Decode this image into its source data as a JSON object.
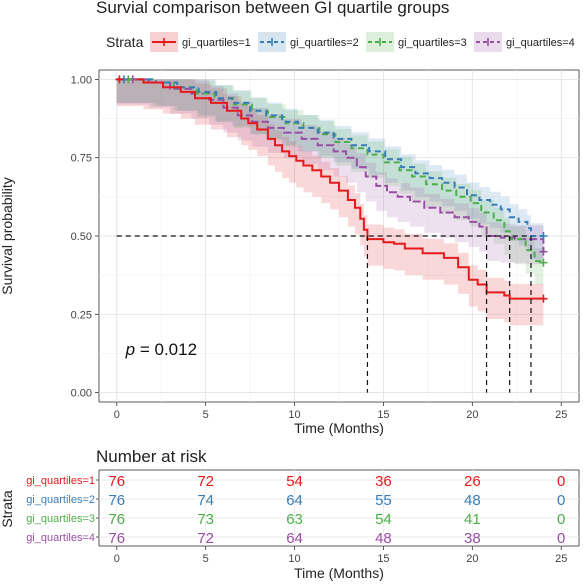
{
  "chart_data": {
    "type": "line",
    "title": "Survial comparison between GI quartile groups",
    "legend": {
      "title": "Strata",
      "position": "top"
    },
    "xlabel": "Time (Months)",
    "ylabel": "Survival probability",
    "xlim": [
      -1,
      26
    ],
    "ylim": [
      -0.03,
      1.03
    ],
    "xticks": [
      0,
      5,
      10,
      15,
      20,
      25
    ],
    "yticks": [
      0.0,
      0.25,
      0.5,
      0.75,
      1.0
    ],
    "ytick_labels": [
      "0.00",
      "0.25",
      "0.50",
      "0.75",
      "1.00"
    ],
    "grid": true,
    "annotation": {
      "p_label": "p",
      "p_rest": " = 0.012",
      "x": 0.5,
      "y": 0.12
    },
    "median_reference": {
      "y": 0.5,
      "medians": [
        14.1,
        20.8,
        22.1,
        23.3
      ]
    },
    "series": [
      {
        "name": "gi_quartiles=1",
        "color": "#e41a1c",
        "dash": "solid",
        "band_width": 0.085,
        "steps": [
          [
            0,
            1.0
          ],
          [
            1.5,
            0.99
          ],
          [
            2.6,
            0.975
          ],
          [
            3.6,
            0.96
          ],
          [
            4.4,
            0.94
          ],
          [
            5.3,
            0.925
          ],
          [
            6.2,
            0.9
          ],
          [
            7.0,
            0.875
          ],
          [
            7.4,
            0.86
          ],
          [
            7.9,
            0.84
          ],
          [
            8.5,
            0.81
          ],
          [
            8.9,
            0.79
          ],
          [
            9.3,
            0.77
          ],
          [
            9.7,
            0.755
          ],
          [
            10.1,
            0.74
          ],
          [
            10.5,
            0.725
          ],
          [
            11.0,
            0.71
          ],
          [
            11.5,
            0.69
          ],
          [
            12.0,
            0.67
          ],
          [
            12.5,
            0.645
          ],
          [
            13.0,
            0.615
          ],
          [
            13.4,
            0.59
          ],
          [
            13.7,
            0.555
          ],
          [
            13.9,
            0.52
          ],
          [
            14.1,
            0.49
          ],
          [
            15.0,
            0.48
          ],
          [
            15.6,
            0.475
          ],
          [
            16.2,
            0.46
          ],
          [
            17.2,
            0.445
          ],
          [
            18.4,
            0.43
          ],
          [
            19.2,
            0.4
          ],
          [
            19.8,
            0.36
          ],
          [
            20.3,
            0.345
          ],
          [
            20.8,
            0.32
          ],
          [
            21.8,
            0.31
          ],
          [
            22.1,
            0.3
          ],
          [
            24.0,
            0.3
          ]
        ],
        "censor_times": [
          24.0
        ],
        "risk_counts": [
          "76",
          "72",
          "54",
          "36",
          "26",
          "0"
        ]
      },
      {
        "name": "gi_quartiles=2",
        "color": "#377eb8",
        "dash": "6,4",
        "band_width": 0.075,
        "steps": [
          [
            0,
            1.0
          ],
          [
            2.2,
            0.99
          ],
          [
            3.4,
            0.975
          ],
          [
            4.6,
            0.96
          ],
          [
            5.6,
            0.94
          ],
          [
            6.5,
            0.925
          ],
          [
            7.5,
            0.9
          ],
          [
            8.4,
            0.885
          ],
          [
            9.3,
            0.865
          ],
          [
            10.2,
            0.845
          ],
          [
            11.3,
            0.83
          ],
          [
            12.2,
            0.81
          ],
          [
            13.2,
            0.79
          ],
          [
            14.2,
            0.77
          ],
          [
            15.1,
            0.745
          ],
          [
            16.0,
            0.72
          ],
          [
            16.8,
            0.7
          ],
          [
            17.6,
            0.685
          ],
          [
            18.3,
            0.67
          ],
          [
            19.0,
            0.655
          ],
          [
            19.7,
            0.63
          ],
          [
            20.4,
            0.615
          ],
          [
            21.0,
            0.6
          ],
          [
            21.6,
            0.585
          ],
          [
            22.1,
            0.56
          ],
          [
            22.6,
            0.545
          ],
          [
            23.1,
            0.525
          ],
          [
            23.3,
            0.5
          ],
          [
            24.0,
            0.5
          ]
        ],
        "censor_times": [
          24.0
        ],
        "risk_counts": [
          "76",
          "74",
          "64",
          "55",
          "48",
          "0"
        ]
      },
      {
        "name": "gi_quartiles=3",
        "color": "#4daf4a",
        "dash": "6,4",
        "band_width": 0.075,
        "steps": [
          [
            0,
            1.0
          ],
          [
            2.0,
            0.99
          ],
          [
            3.2,
            0.975
          ],
          [
            4.5,
            0.955
          ],
          [
            5.5,
            0.94
          ],
          [
            6.6,
            0.92
          ],
          [
            7.6,
            0.9
          ],
          [
            8.5,
            0.88
          ],
          [
            9.5,
            0.86
          ],
          [
            10.5,
            0.845
          ],
          [
            11.4,
            0.825
          ],
          [
            12.3,
            0.8
          ],
          [
            13.2,
            0.78
          ],
          [
            14.1,
            0.76
          ],
          [
            15.0,
            0.735
          ],
          [
            15.9,
            0.71
          ],
          [
            16.6,
            0.69
          ],
          [
            17.4,
            0.665
          ],
          [
            18.3,
            0.645
          ],
          [
            19.1,
            0.625
          ],
          [
            19.9,
            0.605
          ],
          [
            20.5,
            0.575
          ],
          [
            21.2,
            0.55
          ],
          [
            21.8,
            0.515
          ],
          [
            22.1,
            0.49
          ],
          [
            23.0,
            0.455
          ],
          [
            23.5,
            0.42
          ],
          [
            24.0,
            0.415
          ]
        ],
        "censor_times": [
          24.0
        ],
        "risk_counts": [
          "76",
          "73",
          "63",
          "54",
          "41",
          "0"
        ]
      },
      {
        "name": "gi_quartiles=4",
        "color": "#984ea3",
        "dash": "8,3",
        "band_width": 0.08,
        "steps": [
          [
            0,
            1.0
          ],
          [
            1.8,
            0.99
          ],
          [
            3.0,
            0.97
          ],
          [
            4.2,
            0.955
          ],
          [
            5.2,
            0.935
          ],
          [
            6.0,
            0.91
          ],
          [
            6.8,
            0.885
          ],
          [
            7.6,
            0.865
          ],
          [
            8.5,
            0.845
          ],
          [
            9.4,
            0.83
          ],
          [
            10.4,
            0.81
          ],
          [
            11.3,
            0.79
          ],
          [
            12.2,
            0.77
          ],
          [
            12.9,
            0.75
          ],
          [
            13.5,
            0.72
          ],
          [
            14.0,
            0.69
          ],
          [
            14.6,
            0.66
          ],
          [
            15.2,
            0.64
          ],
          [
            15.8,
            0.625
          ],
          [
            16.5,
            0.61
          ],
          [
            17.3,
            0.59
          ],
          [
            18.2,
            0.575
          ],
          [
            19.0,
            0.56
          ],
          [
            19.8,
            0.545
          ],
          [
            20.4,
            0.53
          ],
          [
            20.8,
            0.5
          ],
          [
            21.6,
            0.495
          ],
          [
            22.4,
            0.49
          ],
          [
            24.0,
            0.45
          ]
        ],
        "censor_times": [
          24.0
        ],
        "risk_counts": [
          "76",
          "72",
          "64",
          "48",
          "38",
          "0"
        ]
      }
    ],
    "risk_table": {
      "title": "Number at risk",
      "ylabel": "Strata",
      "xlabel": "Time (Months)",
      "times": [
        0,
        5,
        10,
        15,
        20,
        25
      ],
      "xlim": [
        -1,
        26
      ]
    }
  }
}
